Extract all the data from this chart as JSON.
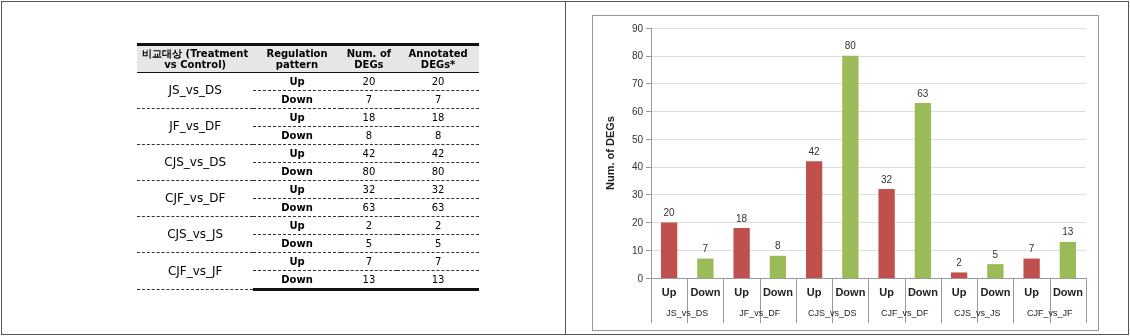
{
  "chart_data": [
    {
      "type": "other",
      "annotations": [
        "비교대상 (Treatment vs Control)",
        "Regulation pattern",
        "Num. of DEGs",
        "Annotated DEGs*",
        "JS_vs_DS",
        "Up",
        "20",
        "20",
        "Down",
        "7",
        "7",
        "JF_vs_DF",
        "Up",
        "18",
        "18",
        "Down",
        "8",
        "8",
        "CJS_vs_DS",
        "Up",
        "42",
        "42",
        "Down",
        "80",
        "80",
        "CJF_vs_DF",
        "Up",
        "32",
        "32",
        "Down",
        "63",
        "63",
        "CJS_vs_JS",
        "Up",
        "2",
        "2",
        "Down",
        "5",
        "5",
        "CJF_vs_JF",
        "Up",
        "7",
        "7",
        "Down",
        "13",
        "13"
      ]
    },
    {
      "type": "bar",
      "ylabel": "Num. of DEGs",
      "categories": [
        "Up",
        "Down",
        "Up",
        "Down",
        "Up",
        "Down",
        "Up",
        "Down",
        "Up",
        "Down",
        "Up",
        "Down"
      ],
      "values": [
        20,
        7,
        18,
        8,
        42,
        80,
        32,
        63,
        2,
        5,
        7,
        13
      ],
      "colors": [
        "#c0504d",
        "#9bbb59",
        "#c0504d",
        "#9bbb59",
        "#c0504d",
        "#9bbb59",
        "#c0504d",
        "#9bbb59",
        "#c0504d",
        "#9bbb59",
        "#c0504d",
        "#9bbb59"
      ],
      "annotations": [
        "JS_vs_DS",
        "JF_vs_DF",
        "CJS_vs_DS",
        "CJF_vs_DF",
        "CJS_vs_JS",
        "CJF_vs_JF"
      ],
      "ylim": [
        0,
        90
      ],
      "yticks": [
        0,
        10,
        20,
        30,
        40,
        50,
        60,
        70,
        80,
        90
      ],
      "grid": "y",
      "data_labels": true
    }
  ]
}
